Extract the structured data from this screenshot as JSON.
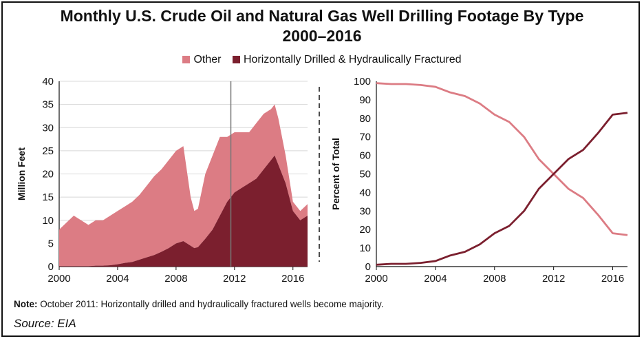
{
  "title_line1": "Monthly U.S. Crude Oil and Natural Gas Well Drilling Footage By Type",
  "title_line2": "2000–2016",
  "legend": [
    {
      "label": "Other",
      "color": "#dc7c84"
    },
    {
      "label": "Horizontally Drilled & Hydraulically Fractured",
      "color": "#7b1f2e"
    }
  ],
  "note_label": "Note:",
  "note_text": " October 2011: Horizontally drilled and hydraulically fractured wells become majority.",
  "source": "Source: EIA",
  "colors": {
    "other": "#dc7c84",
    "hdhf": "#7b1f2e",
    "grid": "#d8d8d8"
  },
  "chart_data": [
    {
      "type": "area",
      "stacked": true,
      "ylabel": "Million Feet",
      "ylim": [
        0,
        40
      ],
      "yticks": [
        0,
        5,
        10,
        15,
        20,
        25,
        30,
        35,
        40
      ],
      "xlim": [
        2000,
        2017
      ],
      "xticks": [
        2000,
        2004,
        2008,
        2012,
        2016
      ],
      "annotation": {
        "type": "vertical-line",
        "x": 2011.75
      },
      "x": [
        2000,
        2000.5,
        2001,
        2001.5,
        2002,
        2002.5,
        2003,
        2003.5,
        2004,
        2004.5,
        2005,
        2005.5,
        2006,
        2006.5,
        2007,
        2007.5,
        2008,
        2008.5,
        2009,
        2009.25,
        2009.5,
        2010,
        2010.5,
        2011,
        2011.5,
        2012,
        2012.5,
        2013,
        2013.5,
        2014,
        2014.5,
        2014.75,
        2015,
        2015.5,
        2016,
        2016.5,
        2017
      ],
      "series": [
        {
          "name": "Horizontally Drilled & Hydraulically Fractured",
          "values": [
            0.1,
            0.1,
            0.1,
            0.1,
            0.1,
            0.2,
            0.2,
            0.3,
            0.5,
            0.8,
            1,
            1.5,
            2,
            2.5,
            3.2,
            4,
            5,
            5.5,
            4.5,
            4,
            4.2,
            6,
            8,
            11,
            14,
            16,
            17,
            18,
            19,
            21,
            23,
            24,
            22,
            18,
            12,
            10,
            11
          ]
        },
        {
          "name": "Other",
          "values": [
            7.9,
            9.4,
            10.9,
            9.9,
            8.9,
            9.8,
            9.8,
            10.7,
            11.5,
            12.2,
            13,
            14,
            15.5,
            17,
            17.8,
            19,
            20,
            20.5,
            10.5,
            8,
            8.3,
            14,
            16,
            17,
            14,
            13,
            12,
            11,
            12,
            12,
            11,
            11,
            10,
            6,
            2,
            2,
            2.5
          ]
        }
      ]
    },
    {
      "type": "line",
      "ylabel": "Percent of Total",
      "ylim": [
        0,
        100
      ],
      "yticks": [
        0,
        10,
        20,
        30,
        40,
        50,
        60,
        70,
        80,
        90,
        100
      ],
      "xlim": [
        2000,
        2017
      ],
      "xticks": [
        2000,
        2004,
        2008,
        2012,
        2016
      ],
      "x": [
        2000,
        2001,
        2002,
        2003,
        2004,
        2005,
        2006,
        2007,
        2008,
        2009,
        2010,
        2011,
        2012,
        2013,
        2014,
        2015,
        2016,
        2017
      ],
      "series": [
        {
          "name": "Other",
          "values": [
            99,
            98.5,
            98.5,
            98,
            97,
            94,
            92,
            88,
            82,
            78,
            70,
            58,
            50,
            42,
            37,
            28,
            18,
            17
          ]
        },
        {
          "name": "Horizontally Drilled & Hydraulically Fractured",
          "values": [
            1,
            1.5,
            1.5,
            2,
            3,
            6,
            8,
            12,
            18,
            22,
            30,
            42,
            50,
            58,
            63,
            72,
            82,
            83
          ]
        }
      ]
    }
  ]
}
